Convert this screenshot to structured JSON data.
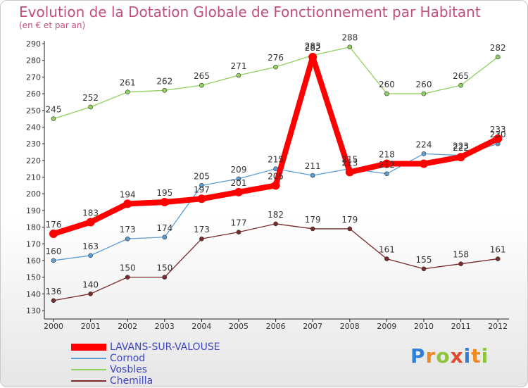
{
  "chart_data": {
    "type": "line",
    "title": "Evolution de la Dotation Globale de Fonctionnement par Habitant",
    "subtitle": "(en € et par an)",
    "categories": [
      "2000",
      "2001",
      "2002",
      "2003",
      "2004",
      "2005",
      "2006",
      "2007",
      "2008",
      "2009",
      "2010",
      "2011",
      "2012"
    ],
    "ylim": [
      130,
      290
    ],
    "yticks": [
      130,
      140,
      150,
      160,
      170,
      180,
      190,
      200,
      210,
      220,
      230,
      240,
      250,
      260,
      270,
      280,
      290
    ],
    "grid": false,
    "legend_position": "bottom-left",
    "series": [
      {
        "name": "LAVANS-SUR-VALOUSE",
        "color": "#ff0000",
        "width": 8,
        "values": [
          176,
          183,
          194,
          195,
          197,
          201,
          205,
          282,
          213,
          218,
          218,
          222,
          233
        ],
        "labels": [
          "176",
          "183",
          "194",
          "195",
          "197",
          "201",
          "205",
          "282",
          "213",
          "218",
          "",
          "222",
          "233"
        ]
      },
      {
        "name": "Cornod",
        "color": "#5a9ed6",
        "width": 1.3,
        "values": [
          160,
          163,
          173,
          174,
          205,
          209,
          215,
          211,
          215,
          212,
          224,
          223,
          230
        ],
        "labels": [
          "160",
          "163",
          "173",
          "174",
          "205",
          "209",
          "215",
          "211",
          "215",
          "212",
          "224",
          "223",
          "230"
        ]
      },
      {
        "name": "Vosbles",
        "color": "#8fd15c",
        "width": 1.3,
        "values": [
          245,
          252,
          261,
          262,
          265,
          271,
          276,
          283,
          288,
          260,
          260,
          265,
          282
        ],
        "labels": [
          "245",
          "252",
          "261",
          "262",
          "265",
          "271",
          "276",
          "283",
          "288",
          "260",
          "260",
          "265",
          "282"
        ]
      },
      {
        "name": "Chemilla",
        "color": "#7a2a2a",
        "width": 1.3,
        "values": [
          136,
          140,
          150,
          150,
          173,
          177,
          182,
          179,
          179,
          161,
          155,
          158,
          161
        ],
        "labels": [
          "136",
          "140",
          "150",
          "150",
          "173",
          "177",
          "182",
          "179",
          "179",
          "161",
          "155",
          "158",
          "161"
        ]
      }
    ],
    "colors": {
      "title": "#c34d7e",
      "legend_text": "#3d45c2",
      "axis": "#222222"
    }
  },
  "brand": {
    "text": "Proxiti",
    "letters": [
      "P",
      "r",
      "o",
      "x",
      "i",
      "t",
      "i"
    ],
    "colors": [
      "#2f7fd6",
      "#f08a24",
      "#8fc43b",
      "#e04a2f",
      "#2f7fd6",
      "#f08a24",
      "#8fc43b"
    ]
  }
}
